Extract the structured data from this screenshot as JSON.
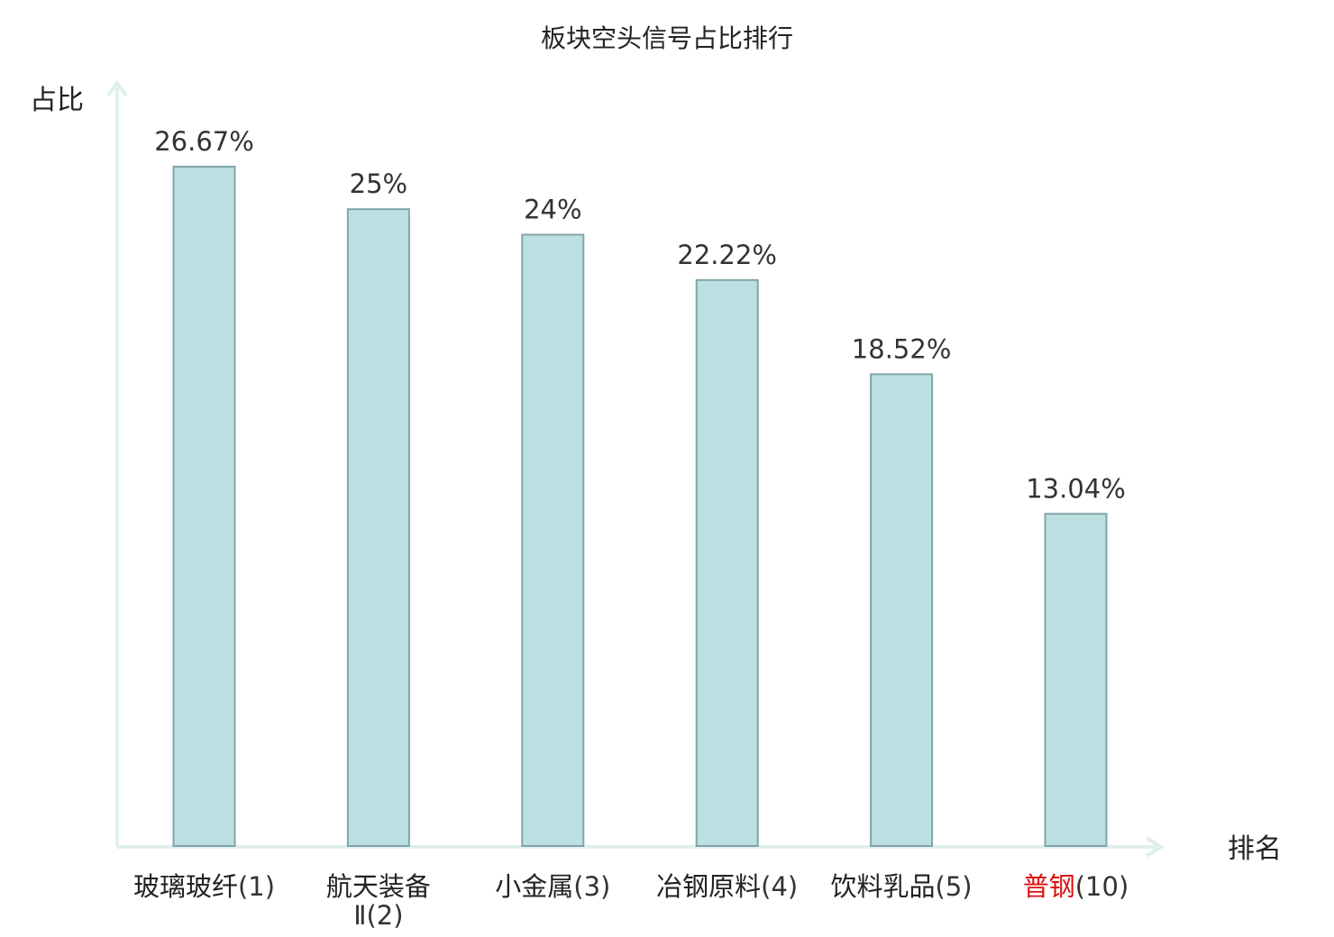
{
  "chart_data": {
    "type": "bar",
    "title": "板块空头信号占比排行",
    "ylabel": "占比",
    "xlabel": "排名",
    "categories": [
      {
        "name": "玻璃玻纤",
        "name_line2": "",
        "rank": "(1)",
        "highlight": false
      },
      {
        "name": "航天装备",
        "name_line2": "Ⅱ(2)",
        "rank": "",
        "highlight": false
      },
      {
        "name": "小金属",
        "name_line2": "",
        "rank": "(3)",
        "highlight": false
      },
      {
        "name": "冶钢原料",
        "name_line2": "",
        "rank": "(4)",
        "highlight": false
      },
      {
        "name": "饮料乳品",
        "name_line2": "",
        "rank": "(5)",
        "highlight": false
      },
      {
        "name": "普钢",
        "name_line2": "",
        "rank": "(10)",
        "highlight": true
      }
    ],
    "values": [
      26.67,
      25,
      24,
      22.22,
      18.52,
      13.04
    ],
    "value_labels": [
      "26.67%",
      "25%",
      "24%",
      "22.22%",
      "18.52%",
      "13.04%"
    ],
    "ylim": [
      0,
      26.67
    ],
    "grid": false,
    "colors": {
      "bar_fill": "#bce0e2",
      "bar_stroke": "#7fa5a8",
      "axis": "#dff0ee",
      "highlight_text": "#dd1111",
      "text": "#222222"
    }
  }
}
